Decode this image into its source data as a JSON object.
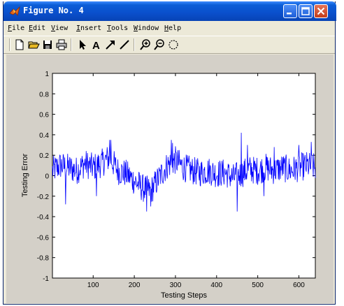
{
  "window": {
    "title": "Figure No. 4",
    "controls": {
      "minimize": "minimize",
      "maximize": "maximize",
      "close": "close"
    }
  },
  "menubar": {
    "items": [
      {
        "label": "File",
        "accel": "F"
      },
      {
        "label": "Edit",
        "accel": "E"
      },
      {
        "label": "View",
        "accel": "V"
      },
      {
        "label": "Insert",
        "accel": "I"
      },
      {
        "label": "Tools",
        "accel": "T"
      },
      {
        "label": "Window",
        "accel": "W"
      },
      {
        "label": "Help",
        "accel": "H"
      }
    ]
  },
  "toolbar": {
    "tools": [
      "new-figure-icon",
      "open-file-icon",
      "save-icon",
      "print-icon",
      "select-arrow-icon",
      "insert-text-icon",
      "insert-arrow-icon",
      "insert-line-icon",
      "zoom-in-icon",
      "zoom-out-icon",
      "rotate-3d-icon"
    ],
    "text_tool_glyph": "A"
  },
  "chart_data": {
    "type": "line",
    "xlabel": "Testing Steps",
    "ylabel": "Testing Error",
    "xlim": [
      1,
      640
    ],
    "ylim": [
      -1,
      1
    ],
    "x_ticks": [
      100,
      200,
      300,
      400,
      500,
      600
    ],
    "y_ticks": [
      "1",
      "0.8",
      "0.6",
      "0.4",
      "0.2",
      "0",
      "-0.2",
      "-0.4",
      "-0.6",
      "-0.8",
      "-1"
    ],
    "grid": false,
    "line_color": "#0000ff",
    "series": [
      {
        "keypoints": [
          [
            1,
            0.05
          ],
          [
            20,
            0.1
          ],
          [
            40,
            0.08
          ],
          [
            60,
            0.05
          ],
          [
            80,
            0.12
          ],
          [
            100,
            0.08
          ],
          [
            120,
            0.12
          ],
          [
            140,
            0.18
          ],
          [
            160,
            0.05
          ],
          [
            180,
            0.02
          ],
          [
            200,
            -0.05
          ],
          [
            220,
            -0.12
          ],
          [
            240,
            -0.15
          ],
          [
            260,
            -0.02
          ],
          [
            280,
            0.1
          ],
          [
            300,
            0.15
          ],
          [
            320,
            0.08
          ],
          [
            340,
            0.05
          ],
          [
            360,
            0.03
          ],
          [
            380,
            0.05
          ],
          [
            400,
            0.02
          ],
          [
            420,
            0.03
          ],
          [
            440,
            -0.02
          ],
          [
            460,
            0.02
          ],
          [
            480,
            0.06
          ],
          [
            500,
            0.05
          ],
          [
            520,
            0.08
          ],
          [
            540,
            0.05
          ],
          [
            560,
            0.08
          ],
          [
            580,
            0.05
          ],
          [
            600,
            0.08
          ],
          [
            620,
            0.1
          ],
          [
            640,
            0.08
          ]
        ],
        "spikes": [
          [
            140,
            0.35
          ],
          [
            143,
            0.35
          ],
          [
            230,
            -0.35
          ],
          [
            240,
            -0.3
          ],
          [
            290,
            0.35
          ],
          [
            293,
            0.32
          ],
          [
            450,
            -0.35
          ],
          [
            460,
            0.42
          ],
          [
            540,
            0.28
          ],
          [
            600,
            0.3
          ],
          [
            630,
            0.33
          ],
          [
            33,
            -0.28
          ],
          [
            108,
            -0.2
          ],
          [
            475,
            0.3
          ],
          [
            515,
            -0.2
          ]
        ]
      }
    ]
  }
}
